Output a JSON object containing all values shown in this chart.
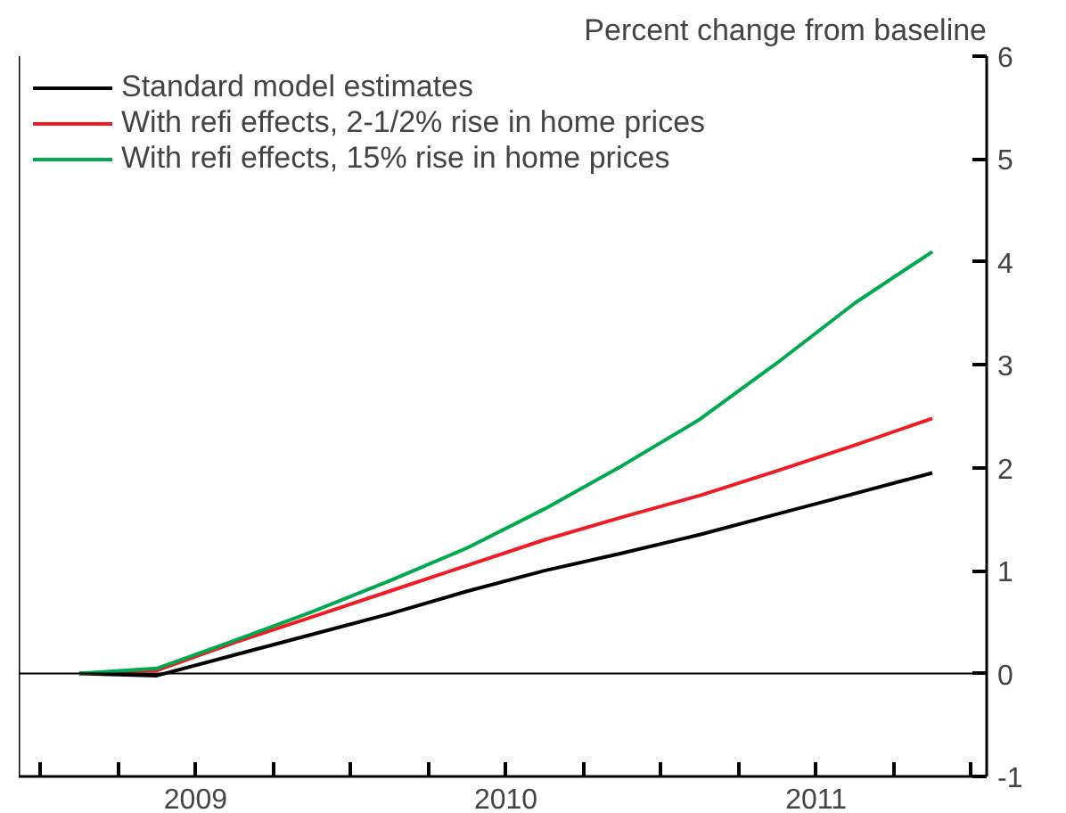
{
  "chart_data": {
    "type": "line",
    "ylabel": "Percent change from baseline",
    "x": [
      2009.125,
      2009.375,
      2009.625,
      2009.875,
      2010.125,
      2010.375,
      2010.625,
      2010.875,
      2011.125,
      2011.375,
      2011.625,
      2011.875
    ],
    "series": [
      {
        "name": "Standard model estimates",
        "color": "#000000",
        "values": [
          0,
          -0.02,
          0.18,
          0.38,
          0.58,
          0.8,
          1.0,
          1.17,
          1.35,
          1.55,
          1.75,
          1.95
        ]
      },
      {
        "name": "With refi effects, 2-1/2% rise in home prices",
        "color": "#ee1c25",
        "values": [
          0,
          0.03,
          0.3,
          0.55,
          0.8,
          1.05,
          1.3,
          1.52,
          1.73,
          1.97,
          2.22,
          2.48
        ]
      },
      {
        "name": "With refi effects, 15% rise in home prices",
        "color": "#00a94f",
        "values": [
          0,
          0.05,
          0.32,
          0.6,
          0.9,
          1.22,
          1.6,
          2.02,
          2.47,
          3.02,
          3.6,
          4.1
        ]
      }
    ],
    "xlim": [
      2008.93,
      2012.05
    ],
    "xticks": [
      {
        "value": 2009,
        "label": null
      },
      {
        "value": 2009.25,
        "label": null
      },
      {
        "value": 2009.5,
        "label": "2009"
      },
      {
        "value": 2009.75,
        "label": null
      },
      {
        "value": 2010,
        "label": null
      },
      {
        "value": 2010.25,
        "label": null
      },
      {
        "value": 2010.5,
        "label": "2010"
      },
      {
        "value": 2010.75,
        "label": null
      },
      {
        "value": 2011,
        "label": null
      },
      {
        "value": 2011.25,
        "label": null
      },
      {
        "value": 2011.5,
        "label": "2011"
      },
      {
        "value": 2011.75,
        "label": null
      },
      {
        "value": 2012,
        "label": null
      }
    ],
    "ylim": [
      -1,
      6
    ],
    "yticks": [
      -1,
      0,
      1,
      2,
      3,
      4,
      5,
      6
    ],
    "ref_lines": [
      {
        "axis": "y",
        "value": 0,
        "label": null,
        "color": "#000000"
      }
    ],
    "grid": false,
    "legend": "top left",
    "marker": "none",
    "line_style": "solid"
  }
}
